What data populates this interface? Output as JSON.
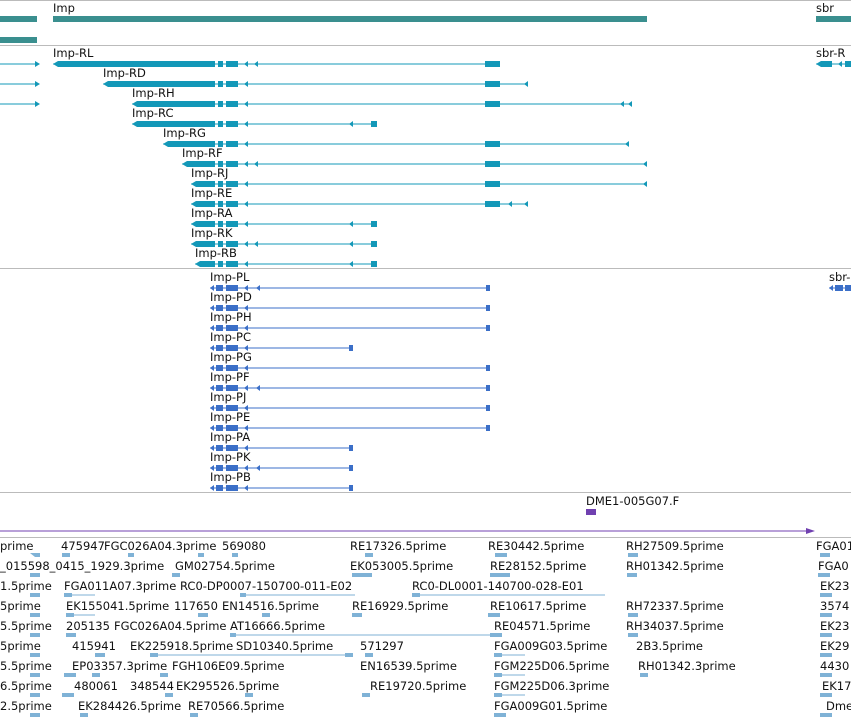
{
  "colors": {
    "gene": "#3a8f8f",
    "transcript": "#1398b8",
    "protein": "#3b6fc8",
    "cdna": "#7040b0",
    "est": "#7fb2d6",
    "separator": "#bbbbbb"
  },
  "gene_track": {
    "labels": [
      "Imp",
      "sbr"
    ]
  },
  "transcript_track": {
    "labels": [
      "Imp-RL",
      "Imp-RD",
      "Imp-RH",
      "Imp-RC",
      "Imp-RG",
      "Imp-RF",
      "Imp-RJ",
      "Imp-RE",
      "Imp-RA",
      "Imp-RK",
      "Imp-RB",
      "sbr-R"
    ]
  },
  "protein_track": {
    "labels": [
      "Imp-PL",
      "Imp-PD",
      "Imp-PH",
      "Imp-PC",
      "Imp-PG",
      "Imp-PF",
      "Imp-PJ",
      "Imp-PE",
      "Imp-PA",
      "Imp-PK",
      "Imp-PB",
      "sbr-"
    ]
  },
  "cdna_track": {
    "labels": [
      "DME1-005G07.F"
    ]
  },
  "est_track": {
    "labels": [
      "prime",
      "475947",
      "FGC026A04.3prime",
      "569080",
      "RE17326.5prime",
      "RE30442.5prime",
      "RH27509.5prime",
      "FGA01",
      "_015598_0415_1929.3prime",
      "GM02754.5prime",
      "EK053005.5prime",
      "RE28152.5prime",
      "RH01342.5prime",
      "FGA0",
      "1.5prime",
      "FGA011A07.3prime",
      "RC0-DP0007-150700-011-E02",
      "RC0-DL0001-140700-028-E01",
      "EK23",
      "5prime",
      "EK155041.5prime",
      "117650",
      "EN14516.5prime",
      "RE16929.5prime",
      "RE10617.5prime",
      "RH72337.5prime",
      "3574",
      "5.5prime",
      "205135",
      "FGC026A04.5prime",
      "AT16666.5prime",
      "RE04571.5prime",
      "RH34037.5prime",
      "EK23",
      "5prime",
      "415941",
      "EK225918.5prime",
      "SD10340.5prime",
      "571297",
      "FGA009G03.5prime",
      "2B3.5prime",
      "EK29",
      "5.5prime",
      "EP03357.3prime",
      "FGH106E09.5prime",
      "EN16539.5prime",
      "FGM225D06.5prime",
      "RH01342.3prime",
      "4430",
      "6.5prime",
      "480061",
      "348544",
      "EK295526.5prime",
      "RE19720.5prime",
      "FGM225D06.3prime",
      "EK17",
      "2.5prime",
      "EK284426.5prime",
      "RE70566.5prime",
      "FGA009G01.5prime",
      "Dmel"
    ]
  }
}
